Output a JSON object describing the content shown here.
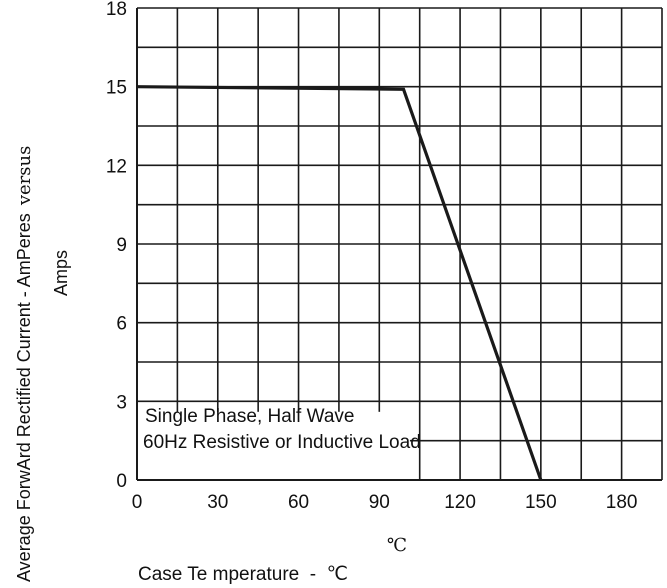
{
  "chart_data": {
    "type": "line",
    "title": "",
    "xlabel": "Case Te mperature  -  ℃",
    "xunit": "℃",
    "ylabel_line1": "Average ForwArd Rectified Current  -  AmPeres",
    "ylabel_versus": "versus",
    "ylabel_line2": "Amps",
    "xlim": [
      0,
      195
    ],
    "ylim": [
      0,
      18
    ],
    "x_ticks": [
      0,
      30,
      60,
      90,
      120,
      150,
      180
    ],
    "y_ticks": [
      0,
      3,
      6,
      9,
      12,
      15,
      18
    ],
    "x_tick_labels": [
      "0",
      "30",
      "60",
      "90",
      "120",
      "150",
      "180"
    ],
    "y_tick_labels": [
      "0",
      "3",
      "6",
      "9",
      "12",
      "15",
      "18"
    ],
    "grid": true,
    "series": [
      {
        "x": [
          0,
          99,
          150
        ],
        "y": [
          15,
          14.9,
          0
        ]
      }
    ],
    "annotation": {
      "line1": "Single Phase, Half Wave",
      "line2": "60Hz Resistive or Inductive Load"
    },
    "colors": {
      "line": "#1a1a1a",
      "grid": "#1a1a1a",
      "background": "#ffffff"
    }
  }
}
